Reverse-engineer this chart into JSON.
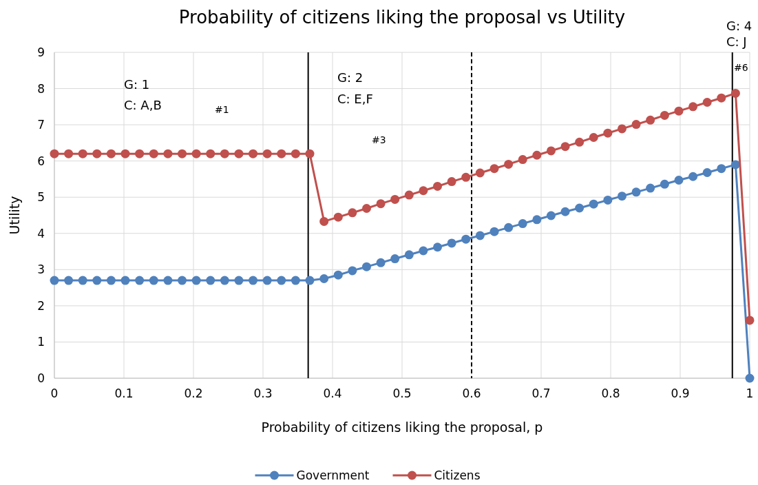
{
  "chart_data": {
    "type": "line",
    "title": "Probability of citizens liking the proposal vs Utility",
    "xlabel": "Probability of citizens liking the proposal, p",
    "ylabel": "Utility",
    "x": [
      0,
      0.0204,
      0.0408,
      0.0612,
      0.0816,
      0.102,
      0.1224,
      0.1429,
      0.1633,
      0.1837,
      0.2041,
      0.2245,
      0.2449,
      0.2653,
      0.2857,
      0.3061,
      0.3265,
      0.3469,
      0.3673,
      0.3878,
      0.4082,
      0.4286,
      0.449,
      0.4694,
      0.4898,
      0.5102,
      0.5306,
      0.551,
      0.5714,
      0.5918,
      0.6122,
      0.6327,
      0.6531,
      0.6735,
      0.6939,
      0.7143,
      0.7347,
      0.7551,
      0.7755,
      0.7959,
      0.8163,
      0.8367,
      0.8571,
      0.8776,
      0.898,
      0.9184,
      0.9388,
      0.9592,
      0.9796,
      1
    ],
    "series": [
      {
        "name": "Government",
        "color": "#4f81bd",
        "values": [
          2.7,
          2.7,
          2.7,
          2.7,
          2.7,
          2.7,
          2.7,
          2.7,
          2.7,
          2.7,
          2.7,
          2.7,
          2.7,
          2.7,
          2.7,
          2.7,
          2.7,
          2.7,
          2.7,
          2.75,
          2.85,
          2.97,
          3.08,
          3.19,
          3.3,
          3.41,
          3.52,
          3.62,
          3.73,
          3.84,
          3.94,
          4.05,
          4.16,
          4.27,
          4.38,
          4.49,
          4.6,
          4.7,
          4.81,
          4.92,
          5.03,
          5.14,
          5.25,
          5.36,
          5.47,
          5.57,
          5.68,
          5.79,
          5.9,
          0
        ]
      },
      {
        "name": "Citizens",
        "color": "#c0504d",
        "values": [
          6.2,
          6.2,
          6.2,
          6.2,
          6.2,
          6.2,
          6.2,
          6.2,
          6.2,
          6.2,
          6.2,
          6.2,
          6.2,
          6.2,
          6.2,
          6.2,
          6.2,
          6.2,
          6.2,
          4.33,
          4.45,
          4.57,
          4.69,
          4.82,
          4.94,
          5.06,
          5.18,
          5.3,
          5.43,
          5.55,
          5.67,
          5.79,
          5.91,
          6.04,
          6.16,
          6.28,
          6.4,
          6.52,
          6.65,
          6.77,
          6.89,
          7.01,
          7.13,
          7.26,
          7.38,
          7.5,
          7.62,
          7.74,
          7.87,
          1.6
        ]
      }
    ],
    "xlim": [
      0,
      1
    ],
    "xticks": [
      0,
      0.1,
      0.2,
      0.3,
      0.4,
      0.5,
      0.6,
      0.7,
      0.8,
      0.9,
      1
    ],
    "ylim": [
      0,
      9
    ],
    "yticks": [
      0,
      1,
      2,
      3,
      4,
      5,
      6,
      7,
      8,
      9
    ],
    "grid": true,
    "legend": "bottom",
    "marker": "circle",
    "line_style": "solid",
    "ref_lines": [
      {
        "axis": "x",
        "value": 0.365,
        "color": "#000000",
        "line_style": "solid"
      },
      {
        "axis": "x",
        "value": 0.6,
        "color": "#000000",
        "line_style": "dashed"
      },
      {
        "axis": "x",
        "value": 0.975,
        "color": "#000000",
        "line_style": "solid"
      }
    ],
    "annotations": [
      "G: 1",
      "C: A,B",
      "#1",
      "G: 2",
      "C: E,F",
      "#3",
      "G: 4",
      "C: J",
      "#6"
    ]
  }
}
